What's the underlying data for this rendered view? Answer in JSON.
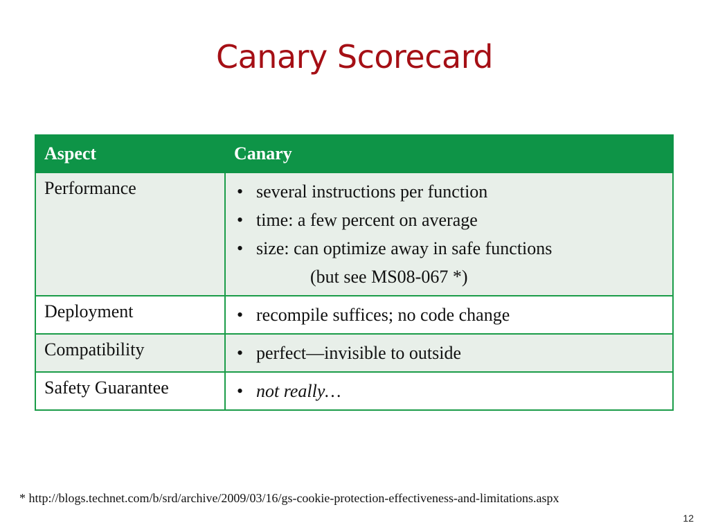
{
  "slide": {
    "title": "Canary Scorecard",
    "footnote": "* http://blogs.technet.com/b/srd/archive/2009/03/16/gs-cookie-protection-effectiveness-and-limitations.aspx",
    "page_number": "12"
  },
  "table": {
    "headers": [
      "Aspect",
      "Canary"
    ],
    "bullet_glyph": "•",
    "rows": [
      {
        "aspect": "Performance",
        "bullets": [
          "several instructions per function",
          "time: a few percent on average",
          "size: can optimize away in safe functions"
        ],
        "continuation": "(but see MS08-067 *)"
      },
      {
        "aspect": "Deployment",
        "bullets": [
          "recompile suffices; no code change"
        ]
      },
      {
        "aspect": "Compatibility",
        "bullets": [
          "perfect—invisible to outside"
        ]
      },
      {
        "aspect": "Safety Guarantee",
        "bullets": [
          "not really…"
        ]
      }
    ]
  },
  "colors": {
    "title": "#a50f15",
    "header_bg": "#0e9447",
    "border": "#1a9c48",
    "alt_row_bg": "#e8efe9"
  }
}
